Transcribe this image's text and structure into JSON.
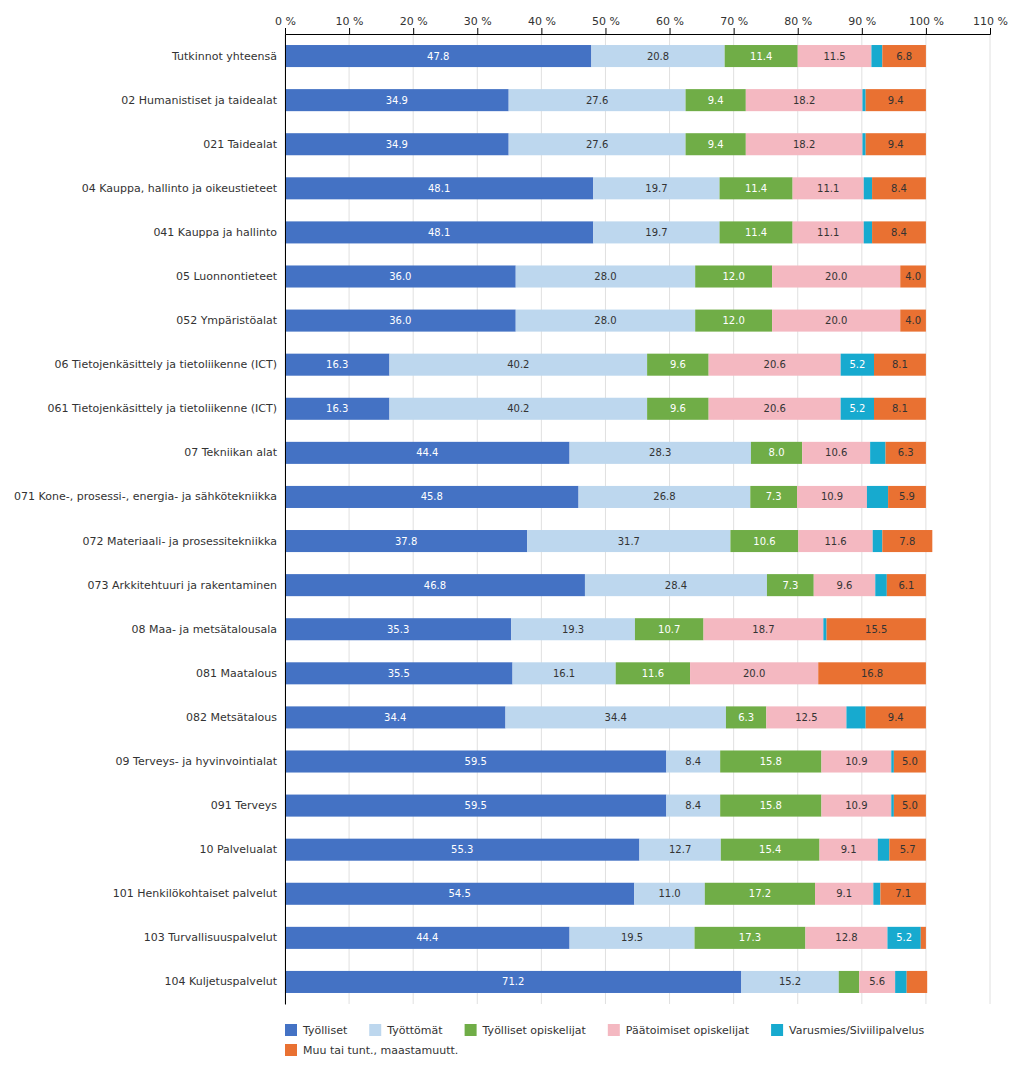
{
  "chart_data": {
    "type": "bar",
    "orientation": "horizontal",
    "stacked": true,
    "categories": [
      "Tutkinnot yhteensä",
      "02 Humanistiset ja taidealat",
      "021 Taidealat",
      "04 Kauppa, hallinto ja oikeustieteet",
      "041 Kauppa ja hallinto",
      "05 Luonnontieteet",
      "052 Ympäristöalat",
      "06 Tietojenkäsittely ja tietoliikenne (ICT)",
      "061 Tietojenkäsittely ja tietoliikenne (ICT)",
      "07 Tekniikan alat",
      "071 Kone-, prosessi-, energia- ja sähkötekniikka",
      "072 Materiaali- ja prosessitekniikka",
      "073 Arkkitehtuuri ja rakentaminen",
      "08 Maa- ja metsätalousala",
      "081 Maatalous",
      "082 Metsätalous",
      "09 Terveys- ja hyvinvointialat",
      "091 Terveys",
      "10 Palvelualat",
      "101 Henkilökohtaiset palvelut",
      "103 Turvallisuuspalvelut",
      "104 Kuljetuspalvelut"
    ],
    "series": [
      {
        "name": "Työlliset",
        "color": "#4472C4",
        "values": [
          47.8,
          34.9,
          34.9,
          48.1,
          48.1,
          36.0,
          36.0,
          16.3,
          16.3,
          44.4,
          45.8,
          37.8,
          46.8,
          35.3,
          35.5,
          34.4,
          59.5,
          59.5,
          55.3,
          54.5,
          44.4,
          71.2
        ],
        "value_labels": [
          "47.8",
          "34.9",
          "34.9",
          "48.1",
          "48.1",
          "36.0",
          "36.0",
          "16.3",
          "16.3",
          "44.4",
          "45.8",
          "37.8",
          "46.8",
          "35.3",
          "35.5",
          "34.4",
          "59.5",
          "59.5",
          "55.3",
          "54.5",
          "44.4",
          "71.2"
        ]
      },
      {
        "name": "Työttömät",
        "color": "#BDD7EE",
        "values": [
          20.8,
          27.6,
          27.6,
          19.7,
          19.7,
          28.0,
          28.0,
          40.2,
          40.2,
          28.3,
          26.8,
          31.7,
          28.4,
          19.3,
          16.1,
          34.4,
          8.4,
          8.4,
          12.7,
          11.0,
          19.5,
          15.2
        ],
        "value_labels": [
          "20.8",
          "27.6",
          "27.6",
          "19.7",
          "19.7",
          "28.0",
          "28.0",
          "40.2",
          "40.2",
          "28.3",
          "26.8",
          "31.7",
          "28.4",
          "19.3",
          "16.1",
          "34.4",
          "8.4",
          "8.4",
          "12.7",
          "11.0",
          "19.5",
          "15.2"
        ]
      },
      {
        "name": "Työlliset opiskelijat",
        "color": "#70AD47",
        "values": [
          11.4,
          9.4,
          9.4,
          11.4,
          11.4,
          12.0,
          12.0,
          9.6,
          9.6,
          8.0,
          7.3,
          10.6,
          7.3,
          10.7,
          11.6,
          6.3,
          15.8,
          15.8,
          15.4,
          17.2,
          17.3,
          3.2
        ],
        "value_labels": [
          "11.4",
          "9.4",
          "9.4",
          "11.4",
          "11.4",
          "12.0",
          "12.0",
          "9.6",
          "9.6",
          "8.0",
          "7.3",
          "10.6",
          "7.3",
          "10.7",
          "11.6",
          "6.3",
          "15.8",
          "15.8",
          "15.4",
          "17.2",
          "17.3",
          null
        ]
      },
      {
        "name": "Päätoimiset opiskelijat",
        "color": "#F4B8C1",
        "values": [
          11.5,
          18.2,
          18.2,
          11.1,
          11.1,
          20.0,
          20.0,
          20.6,
          20.6,
          10.6,
          10.9,
          11.6,
          9.6,
          18.7,
          20.0,
          12.5,
          10.9,
          10.9,
          9.1,
          9.1,
          12.8,
          5.6
        ],
        "value_labels": [
          "11.5",
          "18.2",
          "18.2",
          "11.1",
          "11.1",
          "20.0",
          "20.0",
          "20.6",
          "20.6",
          "10.6",
          "10.9",
          "11.6",
          "9.6",
          "18.7",
          "20.0",
          "12.5",
          "10.9",
          "10.9",
          "9.1",
          "9.1",
          "12.8",
          "5.6"
        ]
      },
      {
        "name": "Varusmies/Siviilipalvelus",
        "color": "#17AACF",
        "values": [
          1.7,
          0.5,
          0.5,
          1.3,
          1.3,
          0.0,
          0.0,
          5.2,
          5.2,
          2.4,
          3.3,
          1.5,
          1.8,
          0.5,
          0.0,
          3.0,
          0.4,
          0.4,
          1.8,
          1.1,
          5.2,
          1.8
        ],
        "value_labels": [
          null,
          null,
          null,
          null,
          null,
          null,
          null,
          "5.2",
          "5.2",
          null,
          null,
          null,
          null,
          null,
          null,
          null,
          null,
          null,
          null,
          null,
          "5.2",
          null
        ]
      },
      {
        "name": "Muu tai tunt., maastamuutt.",
        "color": "#E97132",
        "values": [
          6.8,
          9.4,
          9.4,
          8.4,
          8.4,
          4.0,
          4.0,
          8.1,
          8.1,
          6.3,
          5.9,
          7.8,
          6.1,
          15.5,
          16.8,
          9.4,
          5.0,
          5.0,
          5.7,
          7.1,
          0.8,
          3.2
        ],
        "value_labels": [
          "6.8",
          "9.4",
          "9.4",
          "8.4",
          "8.4",
          "4.0",
          "4.0",
          "8.1",
          "8.1",
          "6.3",
          "5.9",
          "7.8",
          "6.1",
          "15.5",
          "16.8",
          "9.4",
          "5.0",
          "5.0",
          "5.7",
          "7.1",
          null,
          null
        ]
      }
    ],
    "xlim": [
      0,
      110
    ],
    "xticks": [
      {
        "value": 0,
        "label": "0 %"
      },
      {
        "value": 10,
        "label": "10 %"
      },
      {
        "value": 20,
        "label": "20 %"
      },
      {
        "value": 30,
        "label": "30 %"
      },
      {
        "value": 40,
        "label": "40 %"
      },
      {
        "value": 50,
        "label": "50 %"
      },
      {
        "value": 60,
        "label": "60 %"
      },
      {
        "value": 70,
        "label": "70 %"
      },
      {
        "value": 80,
        "label": "80 %"
      },
      {
        "value": 90,
        "label": "90 %"
      },
      {
        "value": 100,
        "label": "100 %"
      },
      {
        "value": 110,
        "label": "110 %"
      }
    ],
    "grid": true,
    "legend": "bottom",
    "data_labels": true
  }
}
